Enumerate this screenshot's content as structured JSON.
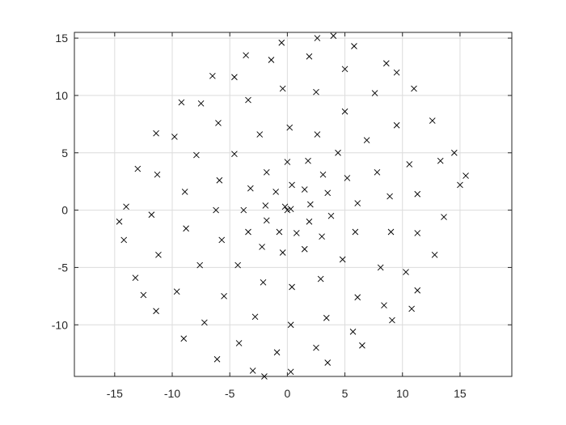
{
  "chart_data": {
    "type": "scatter",
    "title": "",
    "xlabel": "",
    "ylabel": "",
    "xlim": [
      -18.5,
      19.5
    ],
    "ylim": [
      -14.5,
      15.5
    ],
    "grid": true,
    "marker": "x",
    "color": "#000000",
    "x_ticks": [
      {
        "value": -15,
        "label": "-15"
      },
      {
        "value": -10,
        "label": "-10"
      },
      {
        "value": -5,
        "label": "-5"
      },
      {
        "value": 0,
        "label": "0"
      },
      {
        "value": 5,
        "label": "5"
      },
      {
        "value": 10,
        "label": "10"
      },
      {
        "value": 15,
        "label": "15"
      }
    ],
    "y_ticks": [
      {
        "value": -10,
        "label": "-10"
      },
      {
        "value": -5,
        "label": "-5"
      },
      {
        "value": 0,
        "label": "0"
      },
      {
        "value": 5,
        "label": "5"
      },
      {
        "value": 10,
        "label": "10"
      },
      {
        "value": 15,
        "label": "15"
      }
    ],
    "series": [
      {
        "points": [
          [
            0,
            0
          ],
          [
            0.3,
            0.1
          ],
          [
            -0.2,
            0.3
          ],
          [
            2.0,
            0.5
          ],
          [
            1.5,
            1.8
          ],
          [
            0.4,
            2.2
          ],
          [
            -1.0,
            1.6
          ],
          [
            -1.9,
            0.4
          ],
          [
            -1.8,
            -0.9
          ],
          [
            -0.7,
            -1.9
          ],
          [
            0.8,
            -2.0
          ],
          [
            1.9,
            -1.0
          ],
          [
            3.5,
            1.5
          ],
          [
            3.1,
            3.1
          ],
          [
            1.8,
            4.3
          ],
          [
            0.0,
            4.2
          ],
          [
            -1.8,
            3.3
          ],
          [
            -3.2,
            1.9
          ],
          [
            -3.8,
            0.0
          ],
          [
            -3.4,
            -1.9
          ],
          [
            -2.2,
            -3.2
          ],
          [
            -0.4,
            -3.7
          ],
          [
            1.5,
            -3.4
          ],
          [
            3.0,
            -2.3
          ],
          [
            3.8,
            -0.5
          ],
          [
            5.2,
            2.8
          ],
          [
            4.4,
            5.0
          ],
          [
            2.6,
            6.6
          ],
          [
            0.2,
            7.2
          ],
          [
            -2.4,
            6.6
          ],
          [
            -4.6,
            4.9
          ],
          [
            -5.9,
            2.6
          ],
          [
            -6.2,
            0.0
          ],
          [
            -5.7,
            -2.6
          ],
          [
            -4.3,
            -4.8
          ],
          [
            -2.1,
            -6.3
          ],
          [
            0.4,
            -6.7
          ],
          [
            2.9,
            -6.0
          ],
          [
            4.8,
            -4.3
          ],
          [
            5.9,
            -1.9
          ],
          [
            6.1,
            0.6
          ],
          [
            7.8,
            3.3
          ],
          [
            6.9,
            6.1
          ],
          [
            5.0,
            8.6
          ],
          [
            2.5,
            10.3
          ],
          [
            -0.4,
            10.6
          ],
          [
            -3.4,
            9.6
          ],
          [
            -6.0,
            7.6
          ],
          [
            -7.9,
            4.8
          ],
          [
            -8.9,
            1.6
          ],
          [
            -8.8,
            -1.6
          ],
          [
            -7.6,
            -4.8
          ],
          [
            -5.5,
            -7.5
          ],
          [
            -2.8,
            -9.3
          ],
          [
            0.3,
            -10.0
          ],
          [
            3.4,
            -9.4
          ],
          [
            6.1,
            -7.6
          ],
          [
            8.1,
            -5.0
          ],
          [
            9.0,
            -1.9
          ],
          [
            8.9,
            1.2
          ],
          [
            10.6,
            4.0
          ],
          [
            9.5,
            7.4
          ],
          [
            7.6,
            10.2
          ],
          [
            5.0,
            12.3
          ],
          [
            1.9,
            13.4
          ],
          [
            -1.4,
            13.1
          ],
          [
            -4.6,
            11.6
          ],
          [
            -7.5,
            9.3
          ],
          [
            -9.8,
            6.4
          ],
          [
            -11.3,
            3.1
          ],
          [
            -11.8,
            -0.4
          ],
          [
            -11.2,
            -3.9
          ],
          [
            -9.6,
            -7.1
          ],
          [
            -7.2,
            -9.8
          ],
          [
            -4.2,
            -11.6
          ],
          [
            -0.9,
            -12.4
          ],
          [
            2.5,
            -12.0
          ],
          [
            5.7,
            -10.6
          ],
          [
            8.4,
            -8.3
          ],
          [
            10.3,
            -5.4
          ],
          [
            11.3,
            -2.0
          ],
          [
            11.3,
            1.4
          ],
          [
            13.3,
            4.3
          ],
          [
            12.6,
            7.8
          ],
          [
            11.0,
            10.6
          ],
          [
            8.6,
            12.8
          ],
          [
            5.8,
            14.3
          ],
          [
            2.6,
            15.0
          ],
          [
            -0.5,
            14.6
          ],
          [
            -3.6,
            13.5
          ],
          [
            -6.5,
            11.7
          ],
          [
            -9.2,
            9.4
          ],
          [
            -11.4,
            6.7
          ],
          [
            -13.0,
            3.6
          ],
          [
            -14.0,
            0.3
          ],
          [
            -14.2,
            -2.6
          ],
          [
            -13.2,
            -5.9
          ],
          [
            -11.4,
            -8.8
          ],
          [
            -9.0,
            -11.2
          ],
          [
            -6.1,
            -13.0
          ],
          [
            -3.0,
            -14.0
          ],
          [
            0.3,
            -14.1
          ],
          [
            3.5,
            -13.3
          ],
          [
            6.5,
            -11.8
          ],
          [
            9.1,
            -9.6
          ],
          [
            11.3,
            -7.0
          ],
          [
            12.8,
            -3.9
          ],
          [
            13.6,
            -0.6
          ],
          [
            15.0,
            2.2
          ],
          [
            14.5,
            5.0
          ],
          [
            9.5,
            12.0
          ],
          [
            4.0,
            15.2
          ],
          [
            -2.0,
            -14.5
          ],
          [
            -14.6,
            -1.0
          ],
          [
            15.5,
            3.0
          ],
          [
            -12.5,
            -7.4
          ],
          [
            10.8,
            -8.6
          ]
        ]
      }
    ]
  }
}
